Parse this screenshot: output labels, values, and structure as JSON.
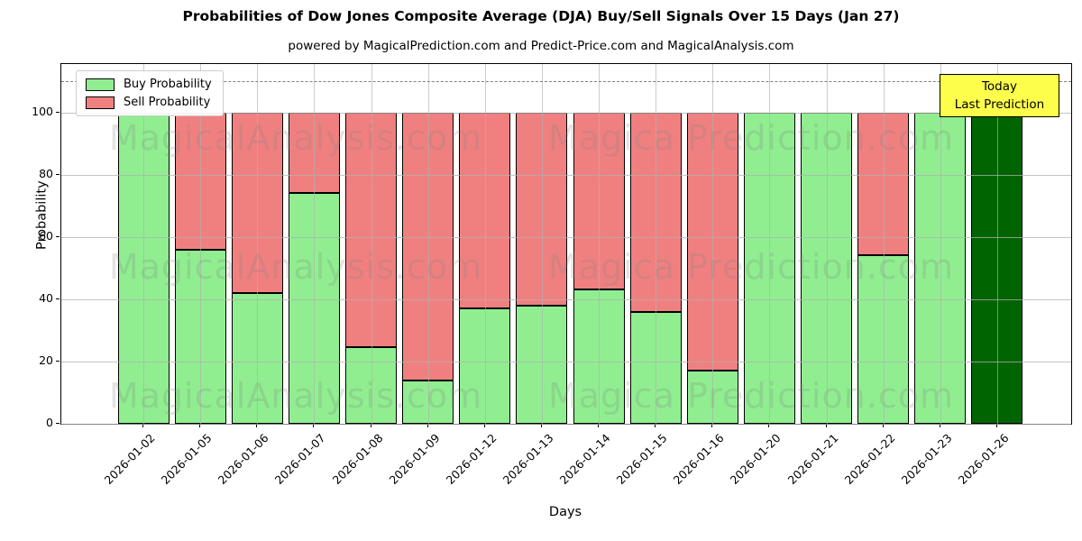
{
  "title": "Probabilities of Dow Jones Composite Average (DJA) Buy/Sell Signals Over 15 Days (Jan 27)",
  "subtitle": "powered by MagicalPrediction.com and Predict-Price.com and MagicalAnalysis.com",
  "legend": {
    "buy_label": "Buy Probability",
    "sell_label": "Sell Probability"
  },
  "annotation_box": {
    "line1": "Today",
    "line2": "Last Prediction",
    "bg_color": "#FDFD4B"
  },
  "watermarks": {
    "left": "MagicalAnalysis.com",
    "right": "Magica Prediction.com"
  },
  "colors": {
    "buy": "#90EE90",
    "sell": "#F08080",
    "last_prediction_bar": "#006400",
    "grid": "#b0b0b0",
    "dashed_line": "#7f7f7f"
  },
  "chart_data": {
    "type": "bar",
    "stacked": true,
    "title": "Probabilities of Dow Jones Composite Average (DJA) Buy/Sell Signals Over 15 Days (Jan 27)",
    "xlabel": "Days",
    "ylabel": "Probability",
    "categories": [
      "2026-01-02",
      "2026-01-05",
      "2026-01-06",
      "2026-01-07",
      "2026-01-08",
      "2026-01-09",
      "2026-01-12",
      "2026-01-13",
      "2026-01-14",
      "2026-01-15",
      "2026-01-16",
      "2026-01-20",
      "2026-01-21",
      "2026-01-22",
      "2026-01-23",
      "2026-01-26"
    ],
    "series": [
      {
        "name": "Buy Probability",
        "color": "#90EE90",
        "values": [
          100,
          56,
          42,
          74,
          24.5,
          14,
          37,
          38,
          43,
          36,
          17,
          100,
          100,
          54,
          100,
          100
        ]
      },
      {
        "name": "Sell Probability",
        "color": "#F08080",
        "values": [
          0,
          44,
          58,
          26,
          75.5,
          86,
          63,
          62,
          57,
          64,
          83,
          0,
          0,
          46,
          0,
          0
        ]
      }
    ],
    "last_bar_is_dark_green": true,
    "y_ticks": [
      0,
      20,
      40,
      60,
      80,
      100
    ],
    "ylim": [
      0,
      115.5
    ],
    "dashed_line_y": 110,
    "grid": true,
    "legend_position": "upper left"
  }
}
